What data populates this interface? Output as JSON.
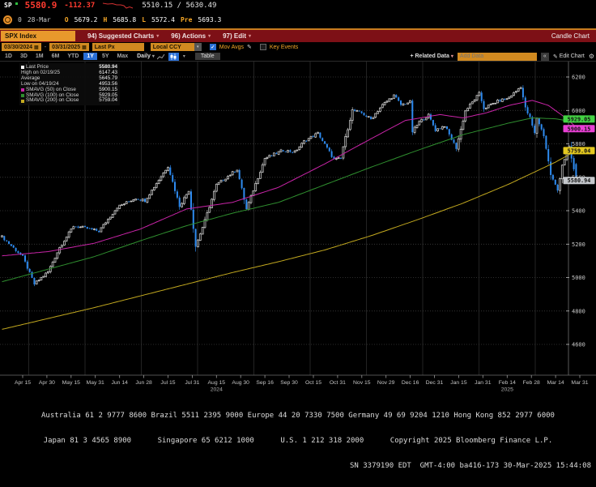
{
  "titlebar": {
    "ticker": "SP",
    "last": "5580.9",
    "change": "-112.37",
    "range": "5510.15 / 5630.49",
    "row2": {
      "count": "0",
      "date": "28-Mar",
      "open_label": "O",
      "open": "5679.2",
      "high_label": "H",
      "high": "5685.8",
      "low_label": "L",
      "low": "5572.4",
      "prev_label": "Pre",
      "prev": "5693.3"
    }
  },
  "menubar": {
    "security": "SPX Index",
    "items": [
      {
        "label": "94) Suggested Charts"
      },
      {
        "label": "96) Actions"
      },
      {
        "label": "97) Edit"
      }
    ],
    "right_label": "Candle Chart"
  },
  "toolbar": {
    "date_from": "03/30/2024",
    "date_to": "03/31/2025",
    "field": "Last Px",
    "currency": "Local CCY",
    "mov_avgs_label": "Mov Avgs",
    "key_events_label": "Key Events",
    "ranges": [
      "1D",
      "3D",
      "1M",
      "6M",
      "YTD",
      "1Y",
      "5Y",
      "Max"
    ],
    "selected_range": "1Y",
    "period": "Daily",
    "table_label": "Table",
    "related_data_label": "+ Related Data",
    "add_data_placeholder": "Add Data",
    "edit_chart_label": "Edit Chart"
  },
  "icons": {
    "caret": "▾",
    "calendar": "▦",
    "pencil": "✎",
    "gear": "⚙",
    "chevrons_left": "«",
    "check": "✓"
  },
  "legend": {
    "rows": [
      {
        "swatch": "#ffffff",
        "label": "Last Price",
        "value": "5580.94"
      },
      {
        "swatch": "",
        "label": "High on 02/19/25",
        "value": "6147.43"
      },
      {
        "swatch": "",
        "label": "Average",
        "value": "5645.79"
      },
      {
        "swatch": "",
        "label": "Low on 04/19/24",
        "value": "4953.56"
      },
      {
        "swatch": "#c924a8",
        "label": "SMAVG (50)  on Close",
        "value": "5900.15"
      },
      {
        "swatch": "#2f8f2f",
        "label": "SMAVG (100)  on Close",
        "value": "5929.05"
      },
      {
        "swatch": "#c3a91f",
        "label": "SMAVG (200)  on Close",
        "value": "5759.04"
      }
    ]
  },
  "chart_data": {
    "type": "candlestick",
    "instrument": "SPX Index",
    "period": "Daily",
    "date_range": "03/30/2024 - 03/31/2025",
    "last_price": 5580.94,
    "last_candle_ohlc": [
      5679.2,
      5685.8,
      5572.4,
      5580.94
    ],
    "y_axis": {
      "ticks": [
        6200,
        6000,
        5800,
        5600,
        5400,
        5200,
        5000,
        4800,
        4600
      ],
      "min": 4420,
      "max": 6290
    },
    "x_axis": {
      "labels": [
        "Apr 15",
        "Apr 30",
        "May 15",
        "May 31",
        "Jun 14",
        "Jun 28",
        "Jul 15",
        "Jul 31",
        "Aug 15",
        "Aug 30",
        "Sep 16",
        "Sep 30",
        "Oct 15",
        "Oct 31",
        "Nov 15",
        "Nov 29",
        "Dec 16",
        "Dec 31",
        "Jan 15",
        "Jan 31",
        "Feb 14",
        "Feb 28",
        "Mar 14",
        "Mar 31"
      ],
      "year_markers": [
        {
          "label": "2024",
          "index": 8
        },
        {
          "label": "2025",
          "index": 20
        }
      ]
    },
    "candles_up_color": "#c9c9c9",
    "candles_down_color": "#2e8bf0",
    "close_anchors": [
      [
        0,
        5244
      ],
      [
        9,
        5123
      ],
      [
        14,
        4960
      ],
      [
        20,
        5035
      ],
      [
        25,
        5180
      ],
      [
        31,
        5308
      ],
      [
        36,
        5297
      ],
      [
        42,
        5277
      ],
      [
        50,
        5421
      ],
      [
        58,
        5475
      ],
      [
        62,
        5460
      ],
      [
        68,
        5585
      ],
      [
        72,
        5667
      ],
      [
        77,
        5427
      ],
      [
        81,
        5522
      ],
      [
        84,
        5186
      ],
      [
        88,
        5340
      ],
      [
        93,
        5554
      ],
      [
        102,
        5648
      ],
      [
        106,
        5408
      ],
      [
        114,
        5713
      ],
      [
        122,
        5762
      ],
      [
        127,
        5751
      ],
      [
        131,
        5815
      ],
      [
        137,
        5864
      ],
      [
        144,
        5705
      ],
      [
        147,
        5712
      ],
      [
        148,
        5783
      ],
      [
        152,
        6001
      ],
      [
        156,
        5984
      ],
      [
        160,
        5948
      ],
      [
        165,
        6032
      ],
      [
        170,
        6090
      ],
      [
        173,
        6034
      ],
      [
        177,
        6051
      ],
      [
        178,
        5872
      ],
      [
        181,
        5931
      ],
      [
        185,
        5971
      ],
      [
        188,
        5882
      ],
      [
        192,
        5909
      ],
      [
        195,
        5827
      ],
      [
        197,
        5775
      ],
      [
        201,
        5997
      ],
      [
        204,
        6049
      ],
      [
        207,
        6101
      ],
      [
        209,
        6012
      ],
      [
        213,
        6041
      ],
      [
        216,
        6061
      ],
      [
        219,
        6068
      ],
      [
        223,
        6115
      ],
      [
        225,
        6144
      ],
      [
        227,
        6013
      ],
      [
        229,
        5955
      ],
      [
        231,
        5861
      ],
      [
        232,
        5955
      ],
      [
        235,
        5850
      ],
      [
        238,
        5615
      ],
      [
        241,
        5521
      ],
      [
        243,
        5675
      ],
      [
        246,
        5777
      ],
      [
        249,
        5581
      ]
    ],
    "moving_averages": [
      {
        "name": "SMAVG (50) on Close",
        "period": 50,
        "last": 5900.15,
        "color": "#c924a8",
        "anchors": [
          [
            0,
            5130
          ],
          [
            20,
            5155
          ],
          [
            40,
            5205
          ],
          [
            60,
            5290
          ],
          [
            80,
            5410
          ],
          [
            90,
            5430
          ],
          [
            100,
            5450
          ],
          [
            120,
            5540
          ],
          [
            140,
            5680
          ],
          [
            160,
            5830
          ],
          [
            175,
            5940
          ],
          [
            190,
            5975
          ],
          [
            200,
            5955
          ],
          [
            210,
            5985
          ],
          [
            220,
            6030
          ],
          [
            230,
            6060
          ],
          [
            237,
            6030
          ],
          [
            244,
            5960
          ],
          [
            249,
            5900
          ]
        ]
      },
      {
        "name": "SMAVG (100) on Close",
        "period": 100,
        "last": 5929.05,
        "color": "#2f8f2f",
        "anchors": [
          [
            0,
            4975
          ],
          [
            20,
            5050
          ],
          [
            40,
            5125
          ],
          [
            60,
            5220
          ],
          [
            80,
            5310
          ],
          [
            100,
            5385
          ],
          [
            120,
            5450
          ],
          [
            140,
            5555
          ],
          [
            160,
            5660
          ],
          [
            180,
            5760
          ],
          [
            200,
            5855
          ],
          [
            210,
            5890
          ],
          [
            220,
            5925
          ],
          [
            230,
            5955
          ],
          [
            240,
            5950
          ],
          [
            249,
            5929
          ]
        ]
      },
      {
        "name": "SMAVG (200) on Close",
        "period": 200,
        "last": 5759.04,
        "color": "#c3a91f",
        "anchors": [
          [
            0,
            4690
          ],
          [
            20,
            4755
          ],
          [
            40,
            4820
          ],
          [
            60,
            4890
          ],
          [
            80,
            4960
          ],
          [
            100,
            5030
          ],
          [
            120,
            5095
          ],
          [
            140,
            5165
          ],
          [
            160,
            5250
          ],
          [
            180,
            5345
          ],
          [
            200,
            5445
          ],
          [
            220,
            5560
          ],
          [
            230,
            5625
          ],
          [
            240,
            5690
          ],
          [
            249,
            5759
          ]
        ]
      }
    ],
    "price_badges": [
      {
        "value": "5929.05",
        "bg": "#43d243"
      },
      {
        "value": "5900.15",
        "bg": "#e93fd4"
      },
      {
        "value": "5759.04",
        "bg": "#e3c81f"
      },
      {
        "value": "5580.94",
        "bg": "#c4c7cb"
      }
    ]
  },
  "footer": {
    "line1": "Australia 61 2 9777 8600 Brazil 5511 2395 9000 Europe 44 20 7330 7500 Germany 49 69 9204 1210 Hong Kong 852 2977 6000",
    "line2": "Japan 81 3 4565 8900      Singapore 65 6212 1000      U.S. 1 212 318 2000      Copyright 2025 Bloomberg Finance L.P.",
    "line3": "SN 3379190 EDT  GMT-4:00 ba416-173 30-Mar-2025 15:44:08"
  }
}
